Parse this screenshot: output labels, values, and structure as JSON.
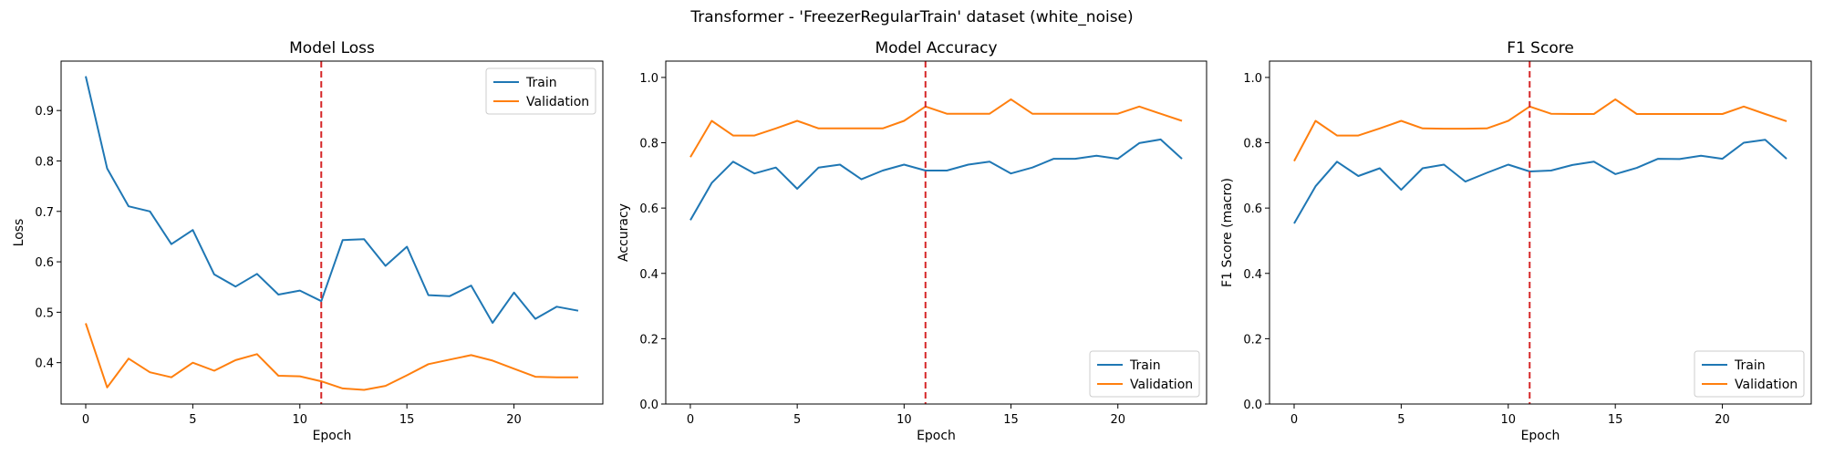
{
  "figure_title": "Transformer - 'FreezerRegularTrain' dataset (white_noise)",
  "colors": {
    "train": "#1f77b4",
    "validation": "#ff7f0e",
    "marker": "#d62728"
  },
  "chart_data": [
    {
      "type": "line",
      "title": "Model Loss",
      "xlabel": "Epoch",
      "ylabel": "Loss",
      "xlim": [
        -1.15,
        24.15
      ],
      "ylim": [
        0.318,
        0.998
      ],
      "xticks": [
        0,
        5,
        10,
        15,
        20
      ],
      "yticks": [
        0.4,
        0.5,
        0.6,
        0.7,
        0.8,
        0.9
      ],
      "tick_decimals": 1,
      "legend_position": "top-right",
      "vline_x": 11,
      "x": [
        0,
        1,
        2,
        3,
        4,
        5,
        6,
        7,
        8,
        9,
        10,
        11,
        12,
        13,
        14,
        15,
        16,
        17,
        18,
        19,
        20,
        21,
        22,
        23
      ],
      "series": [
        {
          "name": "Train",
          "values": [
            0.968,
            0.785,
            0.71,
            0.7,
            0.635,
            0.663,
            0.575,
            0.551,
            0.576,
            0.535,
            0.543,
            0.522,
            0.643,
            0.645,
            0.592,
            0.63,
            0.534,
            0.532,
            0.553,
            0.479,
            0.539,
            0.487,
            0.511,
            0.503
          ]
        },
        {
          "name": "Validation",
          "values": [
            0.478,
            0.351,
            0.408,
            0.381,
            0.371,
            0.4,
            0.384,
            0.405,
            0.417,
            0.374,
            0.373,
            0.363,
            0.349,
            0.346,
            0.354,
            0.375,
            0.397,
            0.406,
            0.415,
            0.404,
            0.388,
            0.372,
            0.371,
            0.371
          ]
        }
      ]
    },
    {
      "type": "line",
      "title": "Model Accuracy",
      "xlabel": "Epoch",
      "ylabel": "Accuracy",
      "xlim": [
        -1.15,
        24.15
      ],
      "ylim": [
        0.0,
        1.05
      ],
      "xticks": [
        0,
        5,
        10,
        15,
        20
      ],
      "yticks": [
        0.0,
        0.2,
        0.4,
        0.6,
        0.8,
        1.0
      ],
      "tick_decimals": 1,
      "legend_position": "bottom-right",
      "vline_x": 11,
      "x": [
        0,
        1,
        2,
        3,
        4,
        5,
        6,
        7,
        8,
        9,
        10,
        11,
        12,
        13,
        14,
        15,
        16,
        17,
        18,
        19,
        20,
        21,
        22,
        23
      ],
      "series": [
        {
          "name": "Train",
          "values": [
            0.563,
            0.677,
            0.742,
            0.706,
            0.724,
            0.659,
            0.724,
            0.733,
            0.688,
            0.715,
            0.733,
            0.715,
            0.715,
            0.733,
            0.742,
            0.706,
            0.724,
            0.751,
            0.751,
            0.76,
            0.751,
            0.799,
            0.81,
            0.751
          ]
        },
        {
          "name": "Validation",
          "values": [
            0.756,
            0.867,
            0.822,
            0.822,
            0.844,
            0.867,
            0.844,
            0.844,
            0.844,
            0.844,
            0.867,
            0.911,
            0.889,
            0.889,
            0.889,
            0.933,
            0.889,
            0.889,
            0.889,
            0.889,
            0.889,
            0.911,
            0.889,
            0.867
          ]
        }
      ]
    },
    {
      "type": "line",
      "title": "F1 Score",
      "xlabel": "Epoch",
      "ylabel": "F1 Score (macro)",
      "xlim": [
        -1.15,
        24.15
      ],
      "ylim": [
        0.0,
        1.05
      ],
      "xticks": [
        0,
        5,
        10,
        15,
        20
      ],
      "yticks": [
        0.0,
        0.2,
        0.4,
        0.6,
        0.8,
        1.0
      ],
      "tick_decimals": 1,
      "legend_position": "bottom-right",
      "vline_x": 11,
      "x": [
        0,
        1,
        2,
        3,
        4,
        5,
        6,
        7,
        8,
        9,
        10,
        11,
        12,
        13,
        14,
        15,
        16,
        17,
        18,
        19,
        20,
        21,
        22,
        23
      ],
      "series": [
        {
          "name": "Train",
          "values": [
            0.553,
            0.667,
            0.742,
            0.698,
            0.722,
            0.656,
            0.722,
            0.733,
            0.681,
            0.708,
            0.733,
            0.712,
            0.715,
            0.732,
            0.742,
            0.704,
            0.723,
            0.751,
            0.75,
            0.76,
            0.751,
            0.8,
            0.809,
            0.751
          ]
        },
        {
          "name": "Validation",
          "values": [
            0.744,
            0.867,
            0.822,
            0.822,
            0.844,
            0.867,
            0.844,
            0.843,
            0.843,
            0.844,
            0.867,
            0.911,
            0.889,
            0.888,
            0.888,
            0.933,
            0.888,
            0.888,
            0.888,
            0.888,
            0.888,
            0.911,
            0.888,
            0.866
          ]
        }
      ]
    }
  ]
}
